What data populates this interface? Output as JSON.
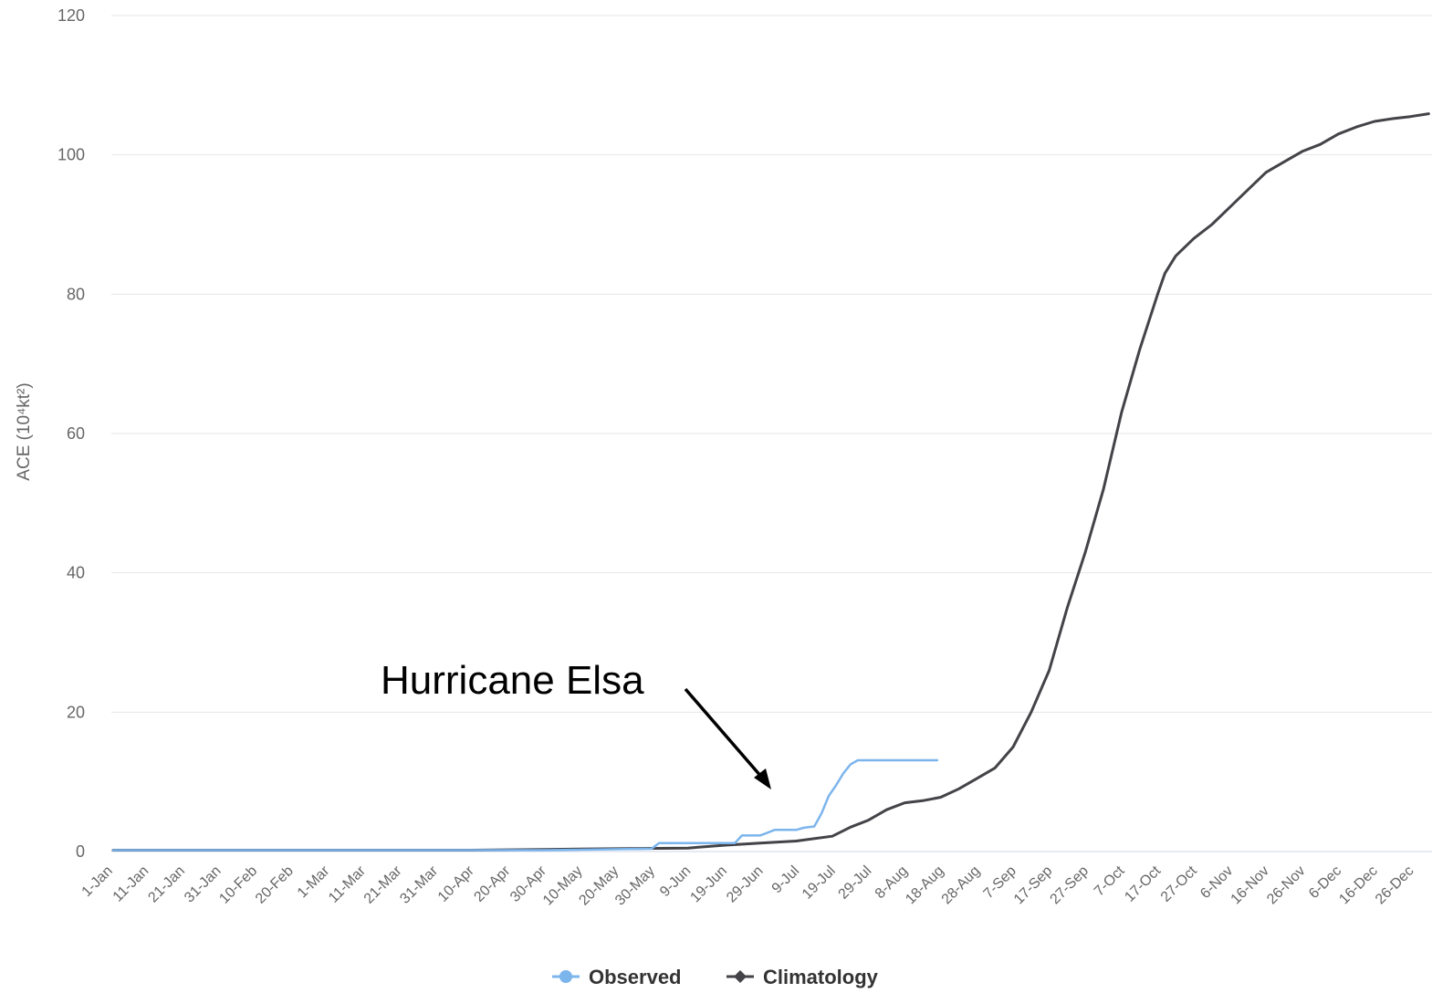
{
  "chart_data": {
    "type": "line",
    "ylabel": "ACE (10⁴kt²)",
    "ylim": [
      0,
      120
    ],
    "y_ticks": [
      0,
      20,
      40,
      60,
      80,
      100,
      120
    ],
    "x_tick_labels": [
      "1-Jan",
      "11-Jan",
      "21-Jan",
      "31-Jan",
      "10-Feb",
      "20-Feb",
      "1-Mar",
      "11-Mar",
      "21-Mar",
      "31-Mar",
      "10-Apr",
      "20-Apr",
      "30-Apr",
      "10-May",
      "20-May",
      "30-May",
      "9-Jun",
      "19-Jun",
      "29-Jun",
      "9-Jul",
      "19-Jul",
      "29-Jul",
      "8-Aug",
      "18-Aug",
      "28-Aug",
      "7-Sep",
      "17-Sep",
      "27-Sep",
      "7-Oct",
      "17-Oct",
      "27-Oct",
      "6-Nov",
      "16-Nov",
      "26-Nov",
      "6-Dec",
      "16-Dec",
      "26-Dec"
    ],
    "grid": true,
    "legend_position": "bottom",
    "series": [
      {
        "name": "Observed",
        "color": "#7cb5ec",
        "points": [
          [
            1,
            0.2
          ],
          [
            120,
            0.2
          ],
          [
            135,
            0.3
          ],
          [
            150,
            0.4
          ],
          [
            152,
            1.2
          ],
          [
            173,
            1.2
          ],
          [
            175,
            2.3
          ],
          [
            180,
            2.3
          ],
          [
            182,
            2.7
          ],
          [
            184,
            3.1
          ],
          [
            190,
            3.1
          ],
          [
            192,
            3.4
          ],
          [
            195,
            3.6
          ],
          [
            197,
            5.5
          ],
          [
            199,
            8.0
          ],
          [
            201,
            9.5
          ],
          [
            203,
            11.2
          ],
          [
            205,
            12.5
          ],
          [
            207,
            13.1
          ],
          [
            225,
            13.1
          ],
          [
            229,
            13.1
          ]
        ]
      },
      {
        "name": "Climatology",
        "color": "#434348",
        "points": [
          [
            1,
            0.2
          ],
          [
            100,
            0.2
          ],
          [
            120,
            0.3
          ],
          [
            140,
            0.4
          ],
          [
            160,
            0.5
          ],
          [
            170,
            0.9
          ],
          [
            180,
            1.2
          ],
          [
            190,
            1.5
          ],
          [
            200,
            2.2
          ],
          [
            205,
            3.5
          ],
          [
            210,
            4.5
          ],
          [
            215,
            6.0
          ],
          [
            220,
            7.0
          ],
          [
            225,
            7.3
          ],
          [
            230,
            7.8
          ],
          [
            235,
            9.0
          ],
          [
            240,
            10.5
          ],
          [
            245,
            12.0
          ],
          [
            250,
            15.0
          ],
          [
            255,
            20.0
          ],
          [
            260,
            26.0
          ],
          [
            265,
            35.0
          ],
          [
            270,
            43.0
          ],
          [
            275,
            52.0
          ],
          [
            280,
            63.0
          ],
          [
            285,
            72.0
          ],
          [
            290,
            80.0
          ],
          [
            292,
            83.0
          ],
          [
            295,
            85.5
          ],
          [
            300,
            88.0
          ],
          [
            305,
            90.0
          ],
          [
            310,
            92.5
          ],
          [
            315,
            95.0
          ],
          [
            320,
            97.5
          ],
          [
            325,
            99.0
          ],
          [
            330,
            100.5
          ],
          [
            335,
            101.5
          ],
          [
            340,
            103.0
          ],
          [
            345,
            104.0
          ],
          [
            350,
            104.8
          ],
          [
            355,
            105.2
          ],
          [
            360,
            105.5
          ],
          [
            365,
            105.9
          ]
        ]
      }
    ],
    "annotations": [
      {
        "text": "Hurricane Elsa",
        "points_to": [
          201,
          9.5
        ]
      }
    ]
  }
}
